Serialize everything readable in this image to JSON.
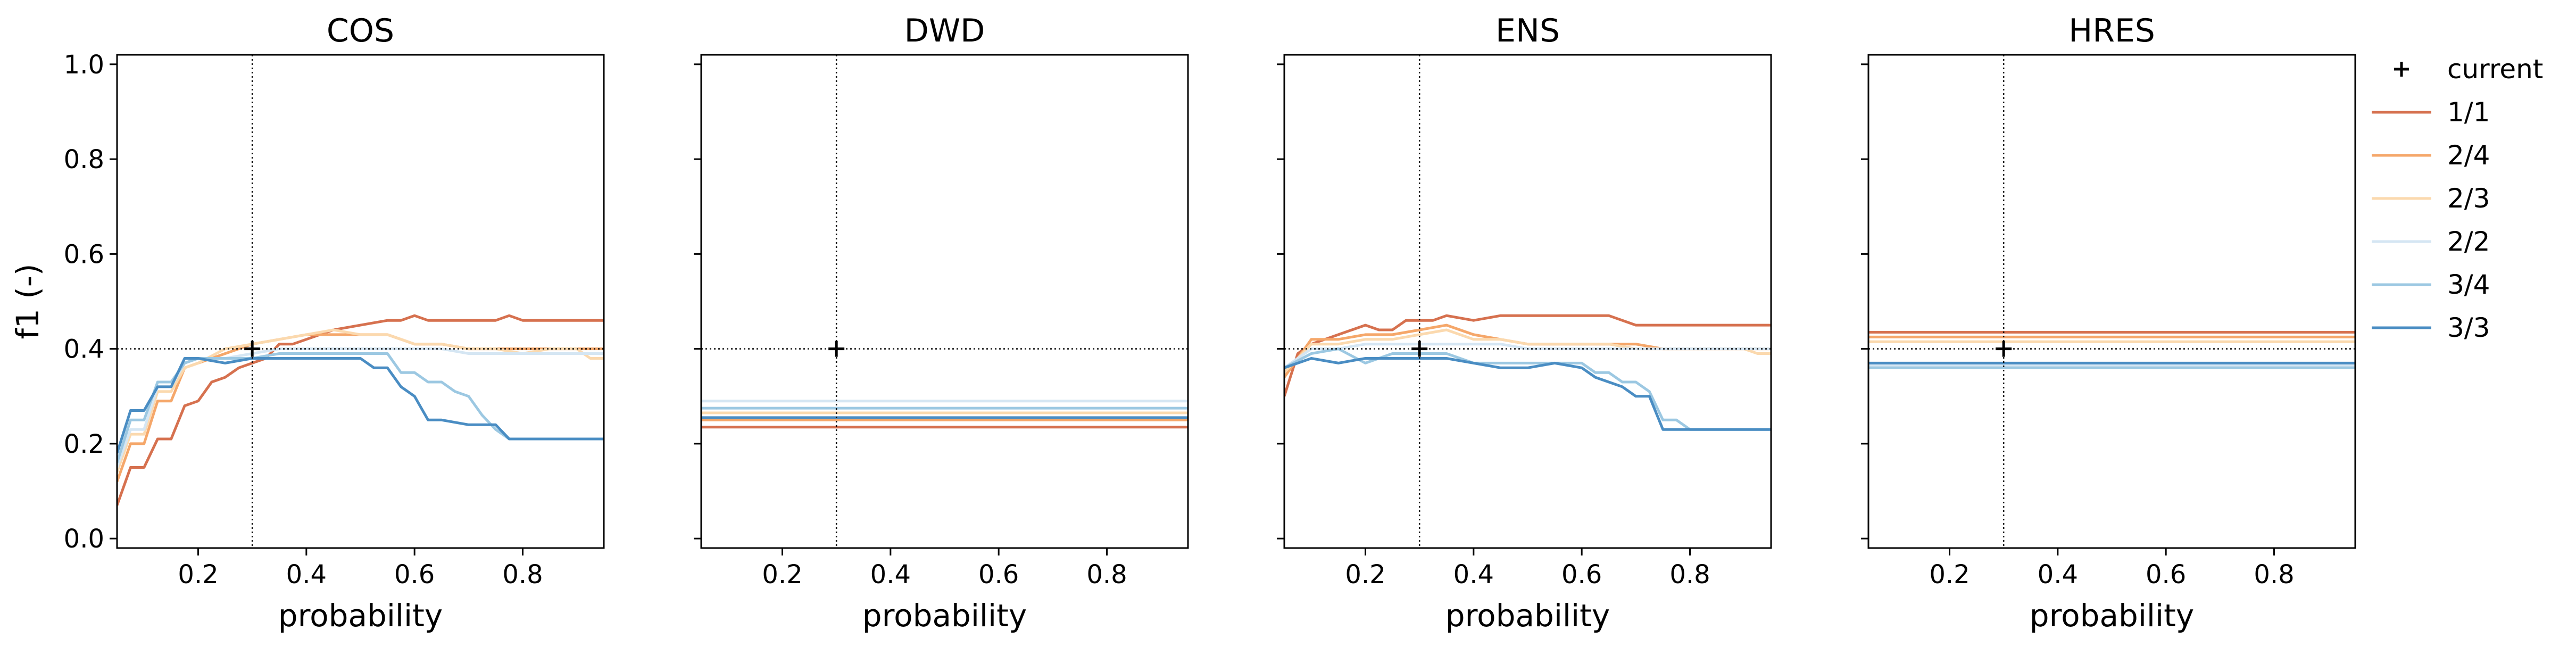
{
  "figure": {
    "ylabel": "f1 (-)",
    "xlabel": "probability"
  },
  "legend": {
    "entries": [
      {
        "label": "current",
        "marker": "plus",
        "color": "#000000"
      },
      {
        "label": "1/1",
        "color": "#d6714f"
      },
      {
        "label": "2/4",
        "color": "#f5a76a"
      },
      {
        "label": "2/3",
        "color": "#fbd9ae"
      },
      {
        "label": "2/2",
        "color": "#d5e6f3"
      },
      {
        "label": "3/4",
        "color": "#9cc8e2"
      },
      {
        "label": "3/3",
        "color": "#4a8dc3"
      }
    ]
  },
  "chart_data": [
    {
      "type": "line",
      "title": "COS",
      "xlabel": "probability",
      "ylabel": "f1 (-)",
      "xlim": [
        0.05,
        0.95
      ],
      "ylim": [
        -0.02,
        1.02
      ],
      "xticks": [
        0.2,
        0.4,
        0.6,
        0.8
      ],
      "yticks": [
        0.0,
        0.2,
        0.4,
        0.6,
        0.8,
        1.0
      ],
      "reference_x": 0.3,
      "reference_y": 0.4,
      "current_point": [
        0.3,
        0.4
      ],
      "series": [
        {
          "name": "1/1",
          "x": [
            0.05,
            0.075,
            0.1,
            0.125,
            0.15,
            0.175,
            0.2,
            0.225,
            0.25,
            0.275,
            0.3,
            0.325,
            0.35,
            0.375,
            0.4,
            0.45,
            0.5,
            0.55,
            0.575,
            0.6,
            0.625,
            0.65,
            0.7,
            0.75,
            0.775,
            0.8,
            0.85,
            0.9,
            0.95
          ],
          "y": [
            0.07,
            0.15,
            0.15,
            0.21,
            0.21,
            0.28,
            0.29,
            0.33,
            0.34,
            0.36,
            0.37,
            0.38,
            0.41,
            0.41,
            0.42,
            0.44,
            0.45,
            0.46,
            0.46,
            0.47,
            0.46,
            0.46,
            0.46,
            0.46,
            0.47,
            0.46,
            0.46,
            0.46,
            0.46
          ]
        },
        {
          "name": "2/4",
          "x": [
            0.05,
            0.075,
            0.1,
            0.125,
            0.15,
            0.175,
            0.2,
            0.25,
            0.3,
            0.35,
            0.4,
            0.45,
            0.5,
            0.55,
            0.6,
            0.65,
            0.7,
            0.75,
            0.8,
            0.85,
            0.9,
            0.95
          ],
          "y": [
            0.12,
            0.2,
            0.2,
            0.29,
            0.29,
            0.36,
            0.37,
            0.39,
            0.41,
            0.42,
            0.43,
            0.43,
            0.43,
            0.43,
            0.41,
            0.41,
            0.4,
            0.4,
            0.4,
            0.4,
            0.4,
            0.4
          ]
        },
        {
          "name": "2/3",
          "x": [
            0.05,
            0.075,
            0.1,
            0.125,
            0.15,
            0.175,
            0.2,
            0.25,
            0.3,
            0.35,
            0.4,
            0.45,
            0.5,
            0.55,
            0.6,
            0.65,
            0.7,
            0.75,
            0.8,
            0.85,
            0.9,
            0.925,
            0.95
          ],
          "y": [
            0.14,
            0.22,
            0.22,
            0.31,
            0.31,
            0.36,
            0.37,
            0.4,
            0.41,
            0.42,
            0.43,
            0.44,
            0.43,
            0.43,
            0.41,
            0.41,
            0.4,
            0.4,
            0.39,
            0.4,
            0.4,
            0.38,
            0.38
          ]
        },
        {
          "name": "2/2",
          "x": [
            0.05,
            0.075,
            0.1,
            0.125,
            0.15,
            0.175,
            0.2,
            0.25,
            0.3,
            0.35,
            0.4,
            0.45,
            0.5,
            0.55,
            0.6,
            0.65,
            0.7,
            0.75,
            0.8,
            0.85,
            0.9,
            0.95
          ],
          "y": [
            0.15,
            0.23,
            0.23,
            0.32,
            0.32,
            0.37,
            0.38,
            0.38,
            0.39,
            0.4,
            0.4,
            0.4,
            0.4,
            0.4,
            0.4,
            0.4,
            0.39,
            0.39,
            0.39,
            0.39,
            0.39,
            0.39
          ]
        },
        {
          "name": "3/4",
          "x": [
            0.05,
            0.075,
            0.1,
            0.125,
            0.15,
            0.175,
            0.2,
            0.25,
            0.3,
            0.35,
            0.4,
            0.45,
            0.5,
            0.55,
            0.575,
            0.6,
            0.625,
            0.65,
            0.675,
            0.7,
            0.725,
            0.75,
            0.775,
            0.8,
            0.85,
            0.9,
            0.95
          ],
          "y": [
            0.16,
            0.25,
            0.25,
            0.33,
            0.33,
            0.37,
            0.38,
            0.38,
            0.38,
            0.39,
            0.39,
            0.39,
            0.39,
            0.39,
            0.35,
            0.35,
            0.33,
            0.33,
            0.31,
            0.3,
            0.26,
            0.23,
            0.21,
            0.21,
            0.21,
            0.21,
            0.21
          ]
        },
        {
          "name": "3/3",
          "x": [
            0.05,
            0.075,
            0.1,
            0.125,
            0.15,
            0.175,
            0.2,
            0.25,
            0.3,
            0.35,
            0.4,
            0.45,
            0.5,
            0.525,
            0.55,
            0.575,
            0.6,
            0.625,
            0.65,
            0.7,
            0.75,
            0.775,
            0.8,
            0.85,
            0.9,
            0.925,
            0.95
          ],
          "y": [
            0.18,
            0.27,
            0.27,
            0.32,
            0.32,
            0.38,
            0.38,
            0.37,
            0.38,
            0.38,
            0.38,
            0.38,
            0.38,
            0.36,
            0.36,
            0.32,
            0.3,
            0.25,
            0.25,
            0.24,
            0.24,
            0.21,
            0.21,
            0.21,
            0.21,
            0.21,
            0.21
          ]
        }
      ]
    },
    {
      "type": "line",
      "title": "DWD",
      "xlabel": "probability",
      "xlim": [
        0.05,
        0.95
      ],
      "ylim": [
        -0.02,
        1.02
      ],
      "xticks": [
        0.2,
        0.4,
        0.6,
        0.8
      ],
      "yticks": [
        0.0,
        0.2,
        0.4,
        0.6,
        0.8,
        1.0
      ],
      "reference_x": 0.3,
      "reference_y": 0.4,
      "current_point": [
        0.3,
        0.4
      ],
      "series": [
        {
          "name": "1/1",
          "x": [
            0.05,
            0.95
          ],
          "y": [
            0.235,
            0.235
          ]
        },
        {
          "name": "2/4",
          "x": [
            0.05,
            0.95
          ],
          "y": [
            0.25,
            0.25
          ]
        },
        {
          "name": "2/3",
          "x": [
            0.05,
            0.95
          ],
          "y": [
            0.265,
            0.265
          ]
        },
        {
          "name": "2/2",
          "x": [
            0.05,
            0.95
          ],
          "y": [
            0.29,
            0.29
          ]
        },
        {
          "name": "3/4",
          "x": [
            0.05,
            0.95
          ],
          "y": [
            0.275,
            0.275
          ]
        },
        {
          "name": "3/3",
          "x": [
            0.05,
            0.95
          ],
          "y": [
            0.255,
            0.255
          ]
        }
      ]
    },
    {
      "type": "line",
      "title": "ENS",
      "xlabel": "probability",
      "xlim": [
        0.05,
        0.95
      ],
      "ylim": [
        -0.02,
        1.02
      ],
      "xticks": [
        0.2,
        0.4,
        0.6,
        0.8
      ],
      "yticks": [
        0.0,
        0.2,
        0.4,
        0.6,
        0.8,
        1.0
      ],
      "reference_x": 0.3,
      "reference_y": 0.4,
      "current_point": [
        0.3,
        0.4
      ],
      "series": [
        {
          "name": "1/1",
          "x": [
            0.05,
            0.075,
            0.1,
            0.125,
            0.15,
            0.175,
            0.2,
            0.225,
            0.25,
            0.275,
            0.3,
            0.325,
            0.35,
            0.4,
            0.45,
            0.5,
            0.55,
            0.6,
            0.65,
            0.7,
            0.75,
            0.8,
            0.85,
            0.9,
            0.95
          ],
          "y": [
            0.3,
            0.39,
            0.41,
            0.42,
            0.43,
            0.44,
            0.45,
            0.44,
            0.44,
            0.46,
            0.46,
            0.46,
            0.47,
            0.46,
            0.47,
            0.47,
            0.47,
            0.47,
            0.47,
            0.45,
            0.45,
            0.45,
            0.45,
            0.45,
            0.45
          ]
        },
        {
          "name": "2/4",
          "x": [
            0.05,
            0.1,
            0.15,
            0.2,
            0.25,
            0.3,
            0.35,
            0.375,
            0.4,
            0.45,
            0.5,
            0.55,
            0.6,
            0.65,
            0.7,
            0.75,
            0.8,
            0.85,
            0.9,
            0.95
          ],
          "y": [
            0.34,
            0.42,
            0.42,
            0.43,
            0.43,
            0.44,
            0.45,
            0.44,
            0.43,
            0.42,
            0.41,
            0.41,
            0.41,
            0.41,
            0.41,
            0.4,
            0.4,
            0.4,
            0.4,
            0.4
          ]
        },
        {
          "name": "2/3",
          "x": [
            0.05,
            0.1,
            0.15,
            0.2,
            0.25,
            0.3,
            0.35,
            0.4,
            0.45,
            0.5,
            0.55,
            0.6,
            0.65,
            0.7,
            0.75,
            0.8,
            0.85,
            0.9,
            0.925,
            0.95
          ],
          "y": [
            0.35,
            0.41,
            0.41,
            0.42,
            0.42,
            0.43,
            0.44,
            0.42,
            0.42,
            0.41,
            0.41,
            0.41,
            0.41,
            0.4,
            0.4,
            0.4,
            0.4,
            0.4,
            0.39,
            0.39
          ]
        },
        {
          "name": "2/2",
          "x": [
            0.05,
            0.1,
            0.15,
            0.2,
            0.25,
            0.3,
            0.35,
            0.4,
            0.45,
            0.5,
            0.55,
            0.6,
            0.65,
            0.7,
            0.75,
            0.8,
            0.85,
            0.9,
            0.95
          ],
          "y": [
            0.36,
            0.4,
            0.4,
            0.41,
            0.41,
            0.41,
            0.41,
            0.41,
            0.41,
            0.4,
            0.4,
            0.4,
            0.4,
            0.4,
            0.4,
            0.4,
            0.4,
            0.4,
            0.4
          ]
        },
        {
          "name": "3/4",
          "x": [
            0.05,
            0.1,
            0.15,
            0.2,
            0.25,
            0.3,
            0.35,
            0.4,
            0.45,
            0.5,
            0.55,
            0.6,
            0.625,
            0.65,
            0.675,
            0.7,
            0.725,
            0.75,
            0.775,
            0.8,
            0.85,
            0.9,
            0.95
          ],
          "y": [
            0.36,
            0.39,
            0.4,
            0.37,
            0.39,
            0.39,
            0.39,
            0.37,
            0.37,
            0.37,
            0.37,
            0.37,
            0.35,
            0.35,
            0.33,
            0.33,
            0.31,
            0.25,
            0.25,
            0.23,
            0.23,
            0.23,
            0.23
          ]
        },
        {
          "name": "3/3",
          "x": [
            0.05,
            0.1,
            0.15,
            0.2,
            0.25,
            0.3,
            0.35,
            0.4,
            0.45,
            0.5,
            0.55,
            0.6,
            0.625,
            0.65,
            0.675,
            0.7,
            0.725,
            0.75,
            0.8,
            0.85,
            0.9,
            0.95
          ],
          "y": [
            0.36,
            0.38,
            0.37,
            0.38,
            0.38,
            0.38,
            0.38,
            0.37,
            0.36,
            0.36,
            0.37,
            0.36,
            0.34,
            0.33,
            0.32,
            0.3,
            0.3,
            0.23,
            0.23,
            0.23,
            0.23,
            0.23
          ]
        }
      ]
    },
    {
      "type": "line",
      "title": "HRES",
      "xlabel": "probability",
      "xlim": [
        0.05,
        0.95
      ],
      "ylim": [
        -0.02,
        1.02
      ],
      "xticks": [
        0.2,
        0.4,
        0.6,
        0.8
      ],
      "yticks": [
        0.0,
        0.2,
        0.4,
        0.6,
        0.8,
        1.0
      ],
      "reference_x": 0.3,
      "reference_y": 0.4,
      "current_point": [
        0.3,
        0.4
      ],
      "series": [
        {
          "name": "1/1",
          "x": [
            0.05,
            0.95
          ],
          "y": [
            0.435,
            0.435
          ]
        },
        {
          "name": "2/4",
          "x": [
            0.05,
            0.95
          ],
          "y": [
            0.425,
            0.425
          ]
        },
        {
          "name": "2/3",
          "x": [
            0.05,
            0.95
          ],
          "y": [
            0.415,
            0.415
          ]
        },
        {
          "name": "2/2",
          "x": [
            0.05,
            0.95
          ],
          "y": [
            0.365,
            0.365
          ]
        },
        {
          "name": "3/4",
          "x": [
            0.05,
            0.95
          ],
          "y": [
            0.36,
            0.36
          ]
        },
        {
          "name": "3/3",
          "x": [
            0.05,
            0.95
          ],
          "y": [
            0.37,
            0.37
          ]
        }
      ]
    }
  ]
}
